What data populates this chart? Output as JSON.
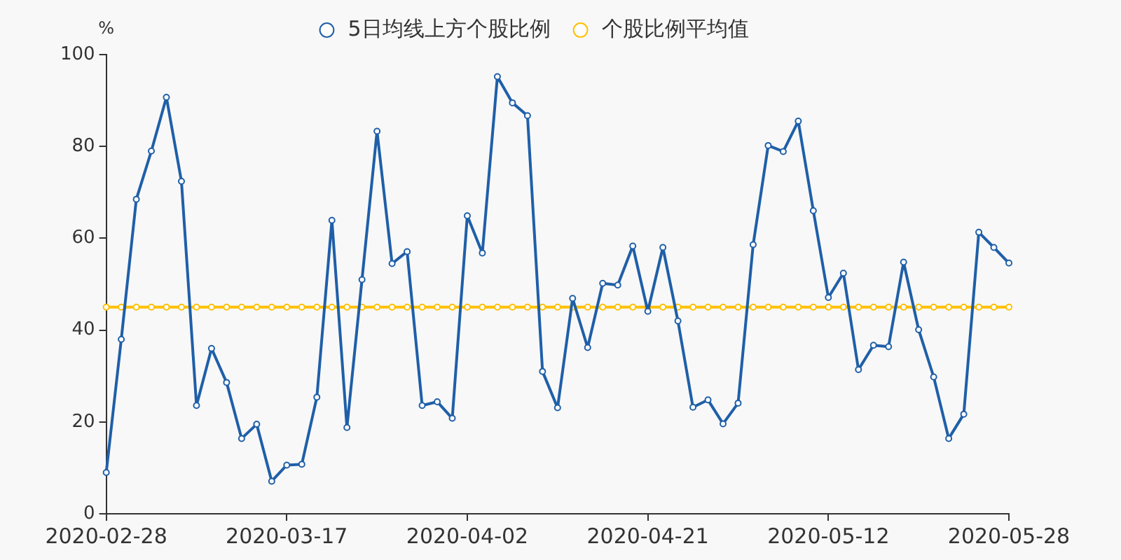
{
  "chart_data": {
    "type": "line",
    "ylabel": "%",
    "categories": [
      "2020-02-28",
      null,
      null,
      null,
      null,
      null,
      null,
      null,
      null,
      null,
      null,
      null,
      "2020-03-17",
      null,
      null,
      null,
      null,
      null,
      null,
      null,
      null,
      null,
      null,
      null,
      "2020-04-02",
      null,
      null,
      null,
      null,
      null,
      null,
      null,
      null,
      null,
      null,
      null,
      "2020-04-21",
      null,
      null,
      null,
      null,
      null,
      null,
      null,
      null,
      null,
      null,
      null,
      "2020-05-12",
      null,
      null,
      null,
      null,
      null,
      null,
      null,
      null,
      null,
      null,
      null,
      "2020-05-28"
    ],
    "series": [
      {
        "name": "5日均线上方个股比例",
        "color": "#1f5fa8",
        "values": [
          9,
          38,
          68.5,
          79,
          90.7,
          72.4,
          23.6,
          36,
          28.6,
          16.4,
          19.5,
          7.1,
          10.6,
          10.8,
          25.4,
          63.9,
          18.8,
          51,
          83.3,
          54.5,
          57.1,
          23.6,
          24.4,
          20.8,
          64.9,
          56.8,
          95.2,
          89.5,
          86.7,
          31,
          23.1,
          46.9,
          36.2,
          50.2,
          49.8,
          58.3,
          44.1,
          58,
          42,
          23.2,
          24.8,
          19.6,
          24.1,
          58.6,
          80.2,
          78.9,
          85.5,
          66,
          47.1,
          52.4,
          31.4,
          36.7,
          36.4,
          54.8,
          40.1,
          29.8,
          16.4,
          21.7,
          61.3,
          58,
          54.6
        ]
      },
      {
        "name": "个股比例平均值",
        "color": "#ffc000",
        "values": [
          45,
          45,
          45,
          45,
          45,
          45,
          45,
          45,
          45,
          45,
          45,
          45,
          45,
          45,
          45,
          45,
          45,
          45,
          45,
          45,
          45,
          45,
          45,
          45,
          45,
          45,
          45,
          45,
          45,
          45,
          45,
          45,
          45,
          45,
          45,
          45,
          45,
          45,
          45,
          45,
          45,
          45,
          45,
          45,
          45,
          45,
          45,
          45,
          45,
          45,
          45,
          45,
          45,
          45,
          45,
          45,
          45,
          45,
          45,
          45,
          45
        ]
      }
    ],
    "ylim": [
      0,
      100
    ],
    "yticks": [
      0,
      20,
      40,
      60,
      80,
      100
    ],
    "grid": false,
    "legend": "top",
    "marker": "circle",
    "line_style": "solid"
  }
}
